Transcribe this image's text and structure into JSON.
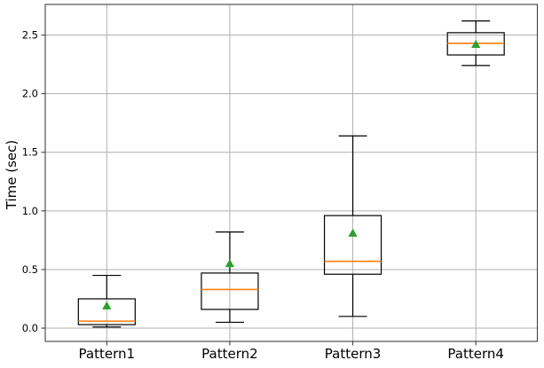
{
  "chart_data": {
    "type": "boxplot",
    "title": "",
    "xlabel": "",
    "ylabel": "Time (sec)",
    "categories": [
      "Pattern1",
      "Pattern2",
      "Pattern3",
      "Pattern4"
    ],
    "yticks": [
      0.0,
      0.5,
      1.0,
      1.5,
      2.0,
      2.5
    ],
    "ytick_labels": [
      "0.0",
      "0.5",
      "1.0",
      "1.5",
      "2.0",
      "2.5"
    ],
    "ylim": [
      -0.113,
      2.761
    ],
    "grid": true,
    "legend": "none",
    "series": [
      {
        "label": "Pattern1",
        "whislo": 0.01,
        "q1": 0.03,
        "med": 0.06,
        "q3": 0.25,
        "whishi": 0.45,
        "mean": 0.19
      },
      {
        "label": "Pattern2",
        "whislo": 0.05,
        "q1": 0.16,
        "med": 0.33,
        "q3": 0.47,
        "whishi": 0.82,
        "mean": 0.55
      },
      {
        "label": "Pattern3",
        "whislo": 0.1,
        "q1": 0.46,
        "med": 0.57,
        "q3": 0.96,
        "whishi": 1.64,
        "mean": 0.81
      },
      {
        "label": "Pattern4",
        "whislo": 2.24,
        "q1": 2.33,
        "med": 2.43,
        "q3": 2.52,
        "whishi": 2.62,
        "mean": 2.42
      }
    ],
    "colors": {
      "background": "#ffffff",
      "box_line": "#000000",
      "median": "#ff7f0e",
      "mean_marker": "#2ca02c",
      "grid": "#b0b0b0",
      "spine": "#404040",
      "text": "#000000"
    }
  }
}
